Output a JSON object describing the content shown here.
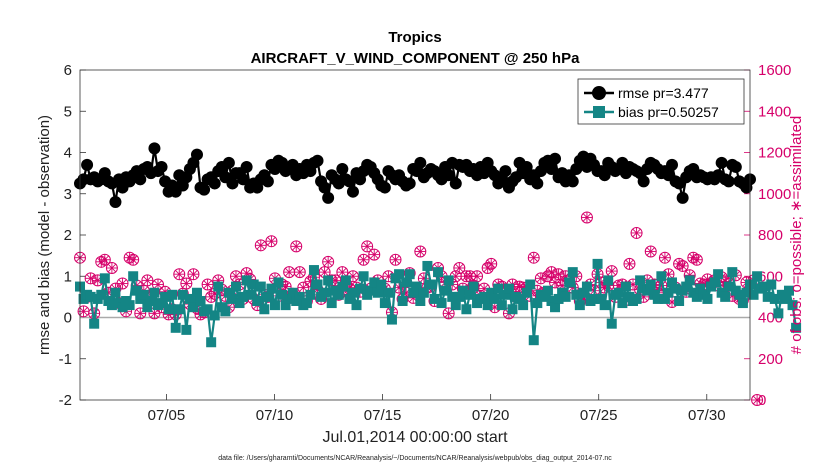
{
  "chart_data": {
    "type": "line",
    "title": "Tropics",
    "subtitle": "AIRCRAFT_V_WIND_COMPONENT @ 250 hPa",
    "xlabel": "Jul.01,2014 00:00:00 start",
    "ylabel": "rmse and bias (model - observation)",
    "ylabel_right": "# of obs: o=possible; ∗=assimilated",
    "footnote": "data file: /Users/gharamti/Documents/NCAR/Reanalysis/~/Documents/NCAR/Reanalysis/webpub/obs_diag_output_2014-07.nc",
    "xlim": [
      1,
      32
    ],
    "ylim": [
      -2,
      6
    ],
    "ylim_right": [
      0,
      1600
    ],
    "xticks": [
      5,
      10,
      15,
      20,
      25,
      30
    ],
    "xtick_labels": [
      "07/05",
      "07/10",
      "07/15",
      "07/20",
      "07/25",
      "07/30"
    ],
    "yticks": [
      "-2",
      "-1",
      "0",
      "1",
      "2",
      "3",
      "4",
      "5",
      "6"
    ],
    "yticks_right": [
      "0",
      "200",
      "400",
      "600",
      "800",
      "1000",
      "1200",
      "1400",
      "1600"
    ],
    "legend_position": "top-right",
    "colors": {
      "rmse": "#000000",
      "bias": "#148585",
      "obs": "#d6006a",
      "zero": "#aaaaaa"
    },
    "series": [
      {
        "name": "rmse pr=3.477",
        "marker": "circle",
        "values": [
          3.25,
          3.35,
          3.7,
          3.35,
          3.4,
          3.3,
          3.35,
          3.5,
          3.3,
          3.25,
          2.8,
          3.35,
          3.15,
          3.4,
          3.3,
          3.45,
          3.55,
          3.35,
          3.6,
          3.65,
          3.5,
          4.1,
          3.55,
          3.65,
          3.3,
          3.05,
          3.2,
          3.05,
          3.45,
          3.2,
          3.4,
          3.6,
          3.75,
          3.95,
          3.15,
          3.1,
          3.35,
          3.4,
          3.25,
          3.55,
          3.65,
          3.4,
          3.75,
          3.25,
          3.5,
          3.5,
          3.35,
          3.65,
          3.15,
          3.25,
          3.15,
          3.35,
          3.45,
          3.3,
          3.7,
          3.6,
          3.8,
          3.75,
          3.55,
          3.6,
          3.7,
          3.45,
          3.6,
          3.5,
          3.7,
          3.55,
          3.75,
          3.8,
          3.3,
          3.15,
          2.9,
          3.45,
          3.35,
          3.25,
          3.6,
          3.35,
          3.3,
          3.05,
          3.5,
          3.35,
          3.55,
          3.7,
          3.65,
          3.5,
          3.35,
          3.2,
          3.15,
          3.55,
          3.45,
          3.35,
          3.45,
          3.3,
          3.2,
          3.25,
          3.6,
          3.55,
          3.75,
          3.4,
          3.5,
          3.6,
          3.55,
          3.45,
          3.35,
          3.65,
          3.45,
          3.75,
          3.25,
          3.7,
          3.65,
          3.7,
          3.55,
          3.6,
          3.45,
          3.65,
          3.5,
          3.75,
          3.55,
          3.45,
          3.25,
          3.35,
          3.55,
          3.15,
          3.3,
          3.4,
          3.75,
          3.5,
          3.65,
          3.35,
          3.45,
          3.25,
          3.55,
          3.75,
          3.8,
          3.6,
          3.85,
          3.4,
          3.5,
          3.3,
          3.45,
          3.3,
          3.6,
          3.8,
          3.9,
          3.65,
          3.85,
          3.7,
          3.55,
          3.55,
          3.45,
          3.75,
          3.65,
          3.55,
          3.6,
          3.75,
          3.5,
          3.65,
          3.6,
          3.55,
          3.5,
          3.3,
          3.6,
          3.75,
          3.7,
          3.6,
          3.5,
          3.55,
          3.45,
          3.7,
          3.3,
          3.25,
          2.9,
          3.4,
          3.55,
          3.6,
          3.4,
          3.45,
          3.4,
          3.35,
          3.4,
          3.35,
          3.45,
          3.75,
          3.35,
          3.3,
          3.7,
          3.65,
          3.3,
          3.25,
          3.15,
          3.35
        ]
      },
      {
        "name": "bias pr=0.50257",
        "marker": "square",
        "values": [
          0.75,
          0.45,
          0.55,
          0.5,
          -0.15,
          0.45,
          0.55,
          0.95,
          0.4,
          0.3,
          0.6,
          0.35,
          0.25,
          0.4,
          0.3,
          1.0,
          0.65,
          0.45,
          0.55,
          0.25,
          0.4,
          0.6,
          0.3,
          0.35,
          0.5,
          0.2,
          0.55,
          -0.25,
          0.2,
          0.55,
          -0.3,
          0.45,
          0.25,
          0.6,
          0.4,
          0.15,
          0.2,
          -0.6,
          0.05,
          0.75,
          0.25,
          0.15,
          0.6,
          0.45,
          0.75,
          0.35,
          0.5,
          0.9,
          0.55,
          0.8,
          0.4,
          0.75,
          0.2,
          0.5,
          0.7,
          0.3,
          0.85,
          0.55,
          0.3,
          0.45,
          0.6,
          0.4,
          0.5,
          0.3,
          0.35,
          0.55,
          1.15,
          0.8,
          0.5,
          0.6,
          0.9,
          0.35,
          0.65,
          0.55,
          0.75,
          0.9,
          0.45,
          0.6,
          0.3,
          0.7,
          1.0,
          0.55,
          0.65,
          0.85,
          0.6,
          0.8,
          0.35,
          0.6,
          -0.05,
          0.95,
          1.05,
          0.4,
          0.85,
          1.05,
          0.6,
          0.75,
          0.4,
          0.6,
          1.25,
          0.8,
          0.45,
          1.1,
          0.35,
          0.65,
          0.9,
          0.5,
          0.3,
          0.5,
          0.65,
          0.2,
          0.55,
          0.75,
          0.35,
          0.45,
          0.5,
          0.3,
          0.6,
          0.45,
          0.7,
          0.3,
          0.55,
          0.7,
          0.2,
          0.5,
          0.45,
          0.3,
          0.6,
          0.8,
          -0.55,
          0.35,
          0.55,
          0.5,
          0.65,
          0.4,
          0.25,
          0.45,
          0.6,
          0.5,
          0.85,
          1.1,
          0.55,
          0.3,
          0.6,
          0.75,
          0.4,
          0.45,
          1.3,
          0.45,
          0.3,
          0.9,
          -0.15,
          0.55,
          0.6,
          0.35,
          0.75,
          0.5,
          0.4,
          0.45,
          0.9,
          0.7,
          0.65,
          0.8,
          0.55,
          0.45,
          1.0,
          0.45,
          0.6,
          0.85,
          0.7,
          0.4,
          0.65,
          0.75,
          0.9,
          0.6,
          0.5,
          0.7,
          0.55,
          0.45,
          0.75,
          0.85,
          1.05,
          0.6,
          0.5,
          0.75,
          1.1,
          0.65,
          0.55,
          0.35,
          0.6,
          0.8,
          0.55,
          1.0,
          0.7,
          0.75,
          0.5,
          0.8,
          0.45,
          0.1,
          0.55,
          0.45,
          0.65,
          0.3,
          -0.25
        ]
      },
      {
        "name": "# of obs possible",
        "marker": "circle-asterisk",
        "axis": "right",
        "values": [
          690,
          430,
          500,
          590,
          420,
          580,
          670,
          680,
          520,
          640,
          540,
          470,
          565,
          430,
          690,
          680,
          555,
          420,
          530,
          580,
          505,
          420,
          560,
          450,
          525,
          415,
          440,
          415,
          610,
          515,
          565,
          465,
          610,
          445,
          415,
          425,
          560,
          500,
          515,
          580,
          535,
          505,
          450,
          530,
          600,
          560,
          490,
          615,
          585,
          490,
          460,
          750,
          510,
          500,
          770,
          590,
          505,
          560,
          550,
          620,
          515,
          745,
          620,
          545,
          480,
          575,
          595,
          535,
          490,
          620,
          670,
          580,
          580,
          510,
          620,
          565,
          540,
          600,
          545,
          525,
          680,
          745,
          540,
          705,
          580,
          540,
          540,
          600,
          425,
          680,
          545,
          490,
          520,
          615,
          495,
          525,
          720,
          590,
          545,
          550,
          480,
          640,
          600,
          570,
          420,
          560,
          600,
          640,
          540,
          600,
          600,
          555,
          600,
          505,
          540,
          640,
          660,
          450,
          560,
          550,
          520,
          420,
          560,
          500,
          550,
          545,
          545,
          505,
          690,
          530,
          590,
          520,
          600,
          620,
          570,
          610,
          555,
          600,
          580,
          545,
          600,
          480,
          490,
          885,
          560,
          530,
          610,
          570,
          545,
          555,
          625,
          500,
          555,
          560,
          485,
          660,
          560,
          810,
          535,
          500,
          580,
          720,
          560,
          520,
          555,
          690,
          610,
          475,
          545,
          660,
          650,
          525,
          605,
          690,
          680,
          565,
          560,
          585,
          560,
          580,
          555,
          595,
          575,
          565,
          505,
          605,
          490,
          485,
          570,
          540,
          580,
          0
        ]
      }
    ]
  }
}
